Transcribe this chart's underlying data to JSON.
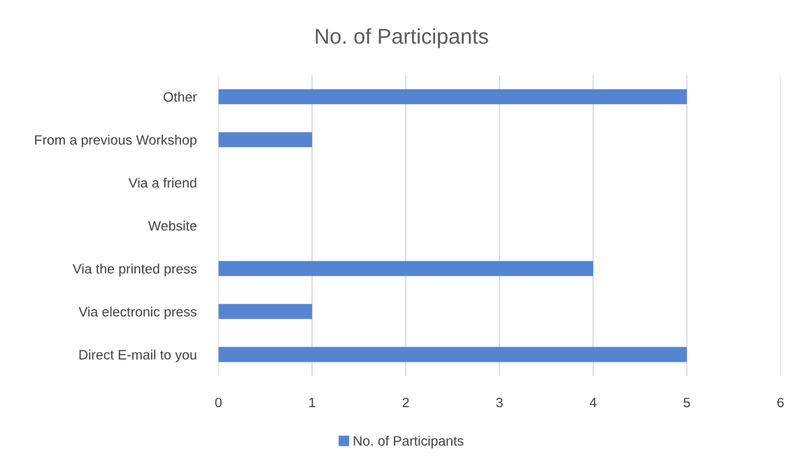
{
  "chart_data": {
    "type": "bar",
    "orientation": "horizontal",
    "title": "No. of Participants",
    "categories": [
      "Other",
      "From a previous Workshop",
      "Via a friend",
      "Website",
      "Via the printed press",
      "Via electronic press",
      "Direct E-mail to you"
    ],
    "series": [
      {
        "name": "No. of Participants",
        "color": "#5585d0",
        "values": [
          5,
          1,
          0,
          0,
          4,
          1,
          5
        ]
      }
    ],
    "xlim": [
      0,
      6
    ],
    "xticks": [
      0,
      1,
      2,
      3,
      4,
      5,
      6
    ],
    "grid": "x",
    "legend": "bottom"
  }
}
